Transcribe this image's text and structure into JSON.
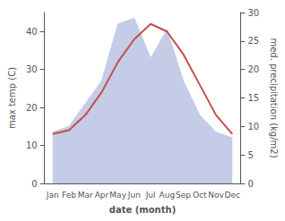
{
  "chart_data": {
    "type": "line",
    "categories": [
      "Jan",
      "Feb",
      "Mar",
      "Apr",
      "May",
      "Jun",
      "Jul",
      "Aug",
      "Sep",
      "Oct",
      "Nov",
      "Dec"
    ],
    "series": [
      {
        "type": "area",
        "axis": "y2",
        "color": "#c5cce8",
        "values": [
          9,
          10,
          14,
          18,
          28,
          29,
          22,
          27,
          18,
          12,
          9,
          8
        ]
      },
      {
        "type": "line",
        "color": "#c0504d",
        "values": [
          13,
          14,
          18,
          24,
          32,
          38,
          42,
          40,
          34,
          26,
          18,
          13
        ]
      }
    ],
    "xlabel": "date (month)",
    "ylabel": "max temp (C)",
    "y2label": "med. precipitation (kg/m2)",
    "ylim": [
      0,
      45
    ],
    "yticks": [
      0,
      10,
      20,
      30,
      40
    ],
    "y2lim": [
      0,
      30
    ],
    "y2ticks": [
      0,
      5,
      10,
      15,
      20,
      25,
      30
    ],
    "grid": false
  }
}
